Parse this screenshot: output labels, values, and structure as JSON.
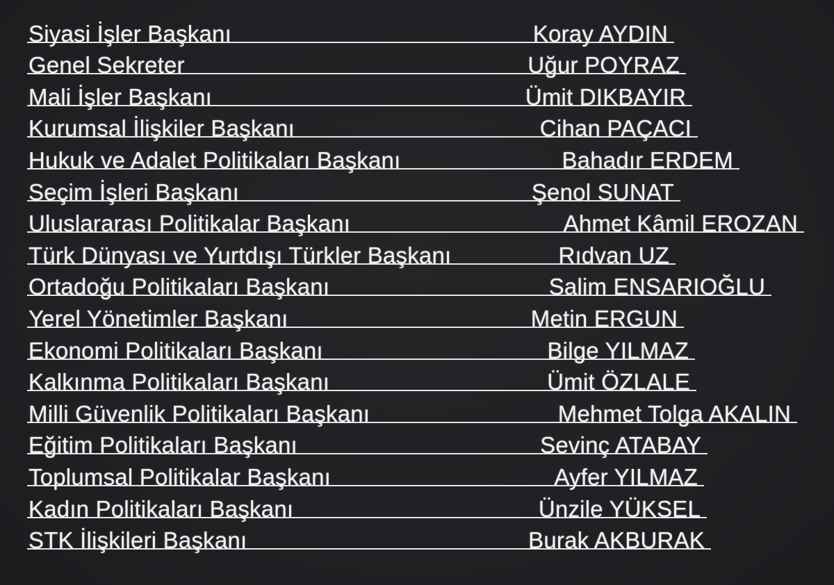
{
  "page": {
    "background_color": "#202124",
    "text_color": "#f2f2f2",
    "line_color": "#f0f0f0"
  },
  "roster": {
    "rows": [
      {
        "title": "Siyasi İşler Başkanı",
        "name": "Koray AYDIN"
      },
      {
        "title": "Genel Sekreter",
        "name": "Uğur POYRAZ"
      },
      {
        "title": "Mali İşler Başkanı",
        "name": "Ümit DIKBAYIR"
      },
      {
        "title": "Kurumsal İlişkiler Başkanı",
        "name": "Cihan PAÇACI"
      },
      {
        "title": "Hukuk ve Adalet Politikaları Başkanı",
        "name": "Bahadır ERDEM"
      },
      {
        "title": "Seçim İşleri Başkanı",
        "name": "Şenol SUNAT"
      },
      {
        "title": "Uluslararası Politikalar Başkanı",
        "name": "Ahmet Kâmil EROZAN"
      },
      {
        "title": "Türk Dünyası ve Yurtdışı Türkler Başkanı",
        "name": "Rıdvan UZ"
      },
      {
        "title": "Ortadoğu Politikaları Başkanı",
        "name": "Salim ENSARIOĞLU"
      },
      {
        "title": "Yerel Yönetimler Başkanı",
        "name": "Metin ERGUN"
      },
      {
        "title": "Ekonomi Politikaları Başkanı",
        "name": "Bilge YILMAZ"
      },
      {
        "title": "Kalkınma Politikaları Başkanı",
        "name": "Ümit ÖZLALE"
      },
      {
        "title": "Milli Güvenlik Politikaları Başkanı",
        "name": "Mehmet Tolga AKALIN"
      },
      {
        "title": "Eğitim Politikaları Başkanı",
        "name": "Sevinç ATABAY"
      },
      {
        "title": "Toplumsal Politikalar Başkanı",
        "name": "Ayfer YILMAZ"
      },
      {
        "title": "Kadın Politikaları Başkanı",
        "name": "Ünzile YÜKSEL"
      },
      {
        "title": "STK İlişkileri Başkanı",
        "name": "Burak AKBURAK"
      }
    ]
  }
}
